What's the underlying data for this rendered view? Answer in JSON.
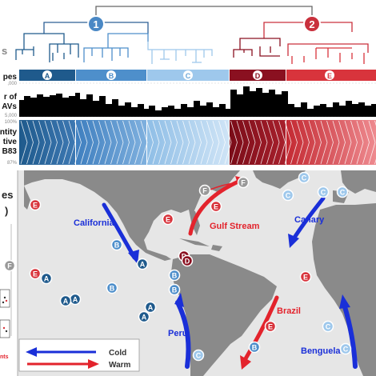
{
  "top_panel": {
    "clade_numbers": [
      "1",
      "2"
    ],
    "row_labels": {
      "types": "pes",
      "count_line1": "r of",
      "count_line2": "AVs",
      "identity_line1": "ntity",
      "identity_line2": "tive",
      "identity_line3": "B83"
    },
    "axis_ticks": {
      "count_top": ",000",
      "count_mid": "5,000",
      "identity_top": "100%",
      "identity_bottom": "87%"
    },
    "group_labels": [
      "A",
      "B",
      "C",
      "D",
      "E"
    ]
  },
  "map_panel": {
    "side_label_line1": "es",
    "side_label_line2": ")",
    "currents": [
      "California",
      "Gulf Stream",
      "Canary",
      "Peru",
      "Brazil",
      "Benguela"
    ],
    "legend": {
      "cold": "Cold",
      "warm": "Warm",
      "partial": "nts"
    },
    "markers": [
      "E",
      "F",
      "F",
      "E",
      "E",
      "C",
      "C",
      "C",
      "C",
      "B",
      "B",
      "A",
      "F",
      "D",
      "D",
      "B",
      "B",
      "A",
      "A",
      "A",
      "A",
      "A",
      "E",
      "E",
      "E",
      "B",
      "C",
      "C",
      "C"
    ]
  },
  "colors": {
    "A": "#1f5a8c",
    "B": "#4e8fcb",
    "C": "#9ec8ec",
    "D": "#8a1020",
    "E": "#d8343c",
    "land": "#8a8a8a",
    "ocean": "#e6e6e6",
    "cold_arrow": "#1a2fd8",
    "warm_arrow": "#e3232c",
    "clade1": "#4a88c5",
    "clade2": "#c9303c"
  }
}
